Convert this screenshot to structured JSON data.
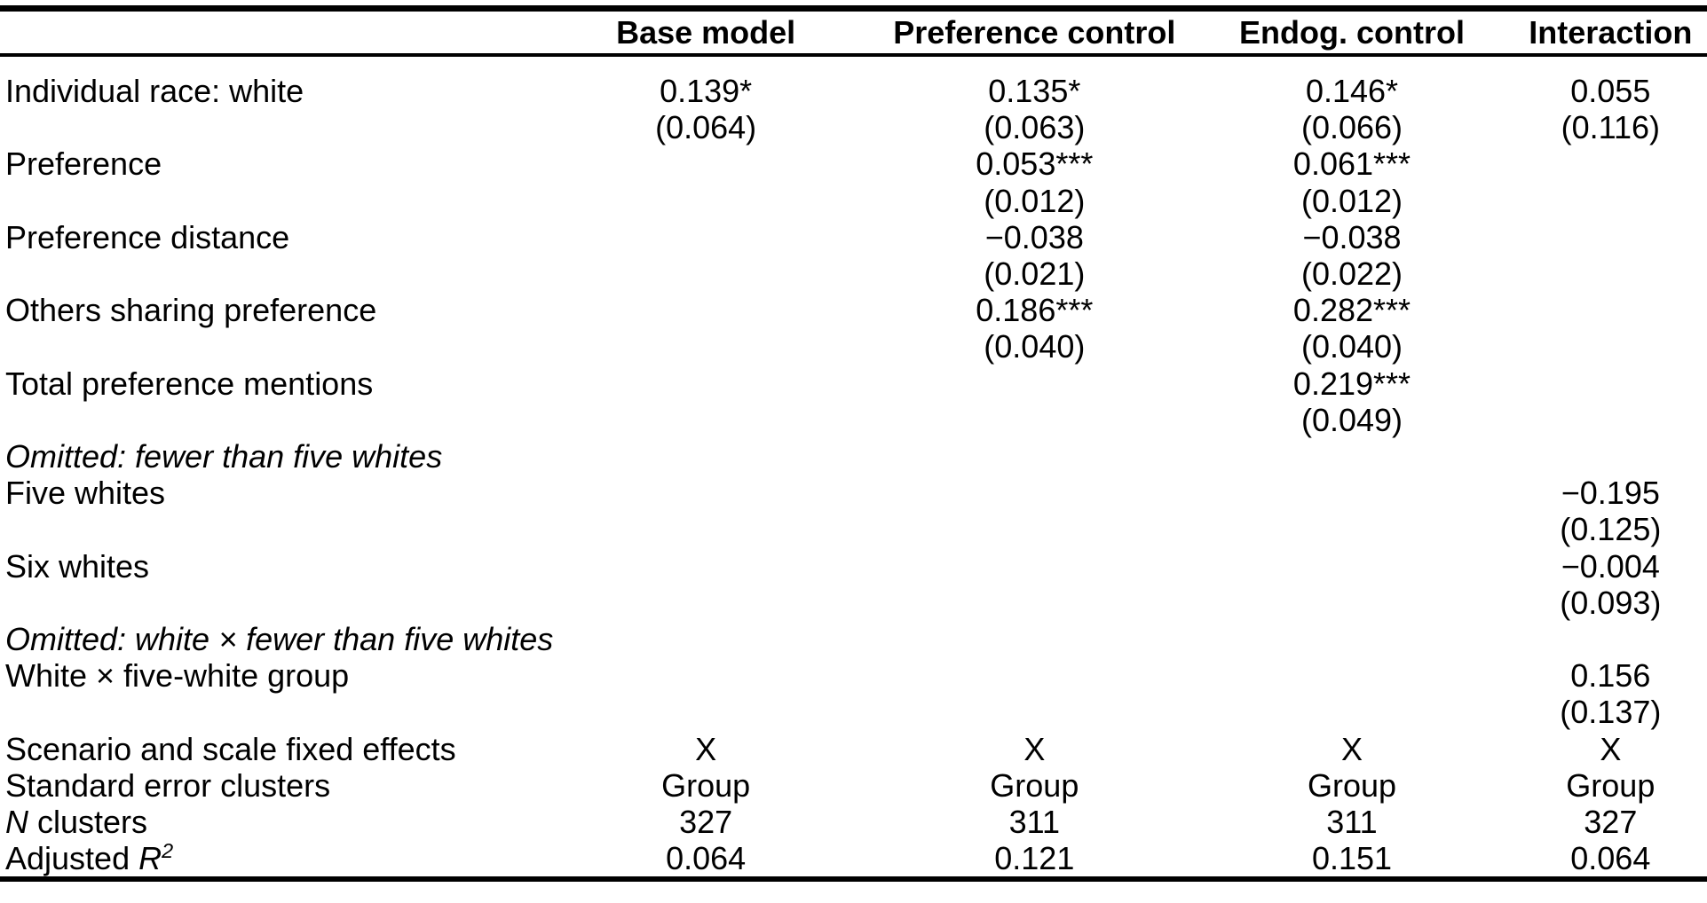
{
  "table": {
    "columns": [
      "Base model",
      "Preference control",
      "Endog. control",
      "Interaction"
    ],
    "rows": [
      {
        "type": "coef",
        "label": "Individual race: white",
        "cells": [
          {
            "est": "0.139*",
            "se": "(0.064)"
          },
          {
            "est": "0.135*",
            "se": "(0.063)"
          },
          {
            "est": "0.146*",
            "se": "(0.066)"
          },
          {
            "est": "0.055",
            "se": "(0.116)"
          }
        ]
      },
      {
        "type": "coef",
        "label": "Preference",
        "cells": [
          null,
          {
            "est": "0.053***",
            "se": "(0.012)"
          },
          {
            "est": "0.061***",
            "se": "(0.012)"
          },
          null
        ]
      },
      {
        "type": "coef",
        "label": "Preference distance",
        "cells": [
          null,
          {
            "est": "−0.038",
            "se": "(0.021)"
          },
          {
            "est": "−0.038",
            "se": "(0.022)"
          },
          null
        ]
      },
      {
        "type": "coef",
        "label": "Others sharing preference",
        "cells": [
          null,
          {
            "est": "0.186***",
            "se": "(0.040)"
          },
          {
            "est": "0.282***",
            "se": "(0.040)"
          },
          null
        ]
      },
      {
        "type": "coef",
        "label": "Total preference mentions",
        "cells": [
          null,
          null,
          {
            "est": "0.219***",
            "se": "(0.049)"
          },
          null
        ]
      },
      {
        "type": "section",
        "label": "Omitted: fewer than five whites"
      },
      {
        "type": "coef",
        "label": "Five whites",
        "cells": [
          null,
          null,
          null,
          {
            "est": "−0.195",
            "se": "(0.125)"
          }
        ]
      },
      {
        "type": "coef",
        "label": "Six whites",
        "cells": [
          null,
          null,
          null,
          {
            "est": "−0.004",
            "se": "(0.093)"
          }
        ]
      },
      {
        "type": "section",
        "label": "Omitted: white × fewer than five whites"
      },
      {
        "type": "coef",
        "label": "White × five-white group",
        "cells": [
          null,
          null,
          null,
          {
            "est": "0.156",
            "se": "(0.137)"
          }
        ]
      },
      {
        "type": "stat",
        "label": "Scenario and scale fixed effects",
        "cells": [
          "X",
          "X",
          "X",
          "X"
        ]
      },
      {
        "type": "stat",
        "label": "Standard error clusters",
        "cells": [
          "Group",
          "Group",
          "Group",
          "Group"
        ]
      },
      {
        "type": "stat",
        "label_parts": [
          {
            "text": "N",
            "italic": true
          },
          {
            "text": " clusters",
            "italic": false
          }
        ],
        "cells": [
          "327",
          "311",
          "311",
          "327"
        ]
      },
      {
        "type": "stat",
        "label_parts": [
          {
            "text": "Adjusted ",
            "italic": false
          },
          {
            "text": "R",
            "italic": true
          },
          {
            "text": "2",
            "italic": true,
            "sup": true
          }
        ],
        "cells": [
          "0.064",
          "0.121",
          "0.151",
          "0.064"
        ]
      }
    ]
  }
}
